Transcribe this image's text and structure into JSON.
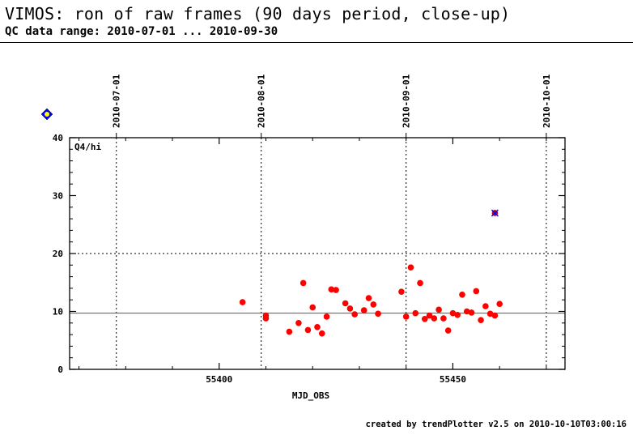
{
  "header": {
    "title": "VIMOS: ron of raw frames (90 days period, close-up)",
    "subtitle": "QC data range: 2010-07-01 ... 2010-09-30"
  },
  "footer": {
    "credit": "created by trendPlotter v2.5 on 2010-10-10T03:00:16"
  },
  "chart_data": {
    "type": "scatter",
    "panel_label": "Q4/hi",
    "xlabel": "MJD_OBS",
    "ylabel": "",
    "xlim": [
      55368,
      55474
    ],
    "ylim": [
      0,
      40
    ],
    "x_ticks": [
      55400,
      55450
    ],
    "y_ticks": [
      0,
      10,
      20,
      30,
      40
    ],
    "date_markers": [
      {
        "label": "2010-07-01",
        "x": 55378
      },
      {
        "label": "2010-08-01",
        "x": 55409
      },
      {
        "label": "2010-09-01",
        "x": 55440
      },
      {
        "label": "2010-10-01",
        "x": 55470
      }
    ],
    "reference_lines": [
      {
        "y": 9.7,
        "style": "solid"
      },
      {
        "y": 20,
        "style": "dotted"
      }
    ],
    "grid": false,
    "colors": {
      "points": "#ff0000",
      "outlier": "#cc0000",
      "outlier_marker": "#0000ff",
      "diamond": "#0000ff",
      "diamond_fill": "#ffff00"
    },
    "series": [
      {
        "x": [
          55405,
          55410,
          55410,
          55415,
          55417,
          55418,
          55419,
          55420,
          55421,
          55422,
          55423,
          55424,
          55425,
          55427,
          55428,
          55429,
          55431,
          55432,
          55433,
          55434,
          55439,
          55440,
          55441,
          55442,
          55443,
          55444,
          55445,
          55446,
          55447,
          55448,
          55449,
          55450,
          55451,
          55452,
          55453,
          55454,
          55455,
          55456,
          55457,
          55458,
          55459,
          55460
        ],
        "y": [
          11.6,
          9.3,
          8.8,
          6.5,
          8.0,
          14.9,
          6.8,
          10.7,
          7.3,
          6.2,
          9.1,
          13.8,
          13.7,
          11.4,
          10.5,
          9.5,
          10.2,
          12.3,
          11.2,
          9.6,
          13.4,
          9.1,
          17.6,
          9.7,
          14.9,
          8.7,
          9.3,
          8.8,
          10.3,
          8.8,
          6.7,
          9.7,
          9.4,
          12.9,
          10.0,
          9.8,
          13.5,
          8.5,
          10.9,
          9.6,
          9.3,
          11.3
        ]
      },
      {
        "name": "outlier",
        "x": [
          55459
        ],
        "y": [
          27.0
        ]
      }
    ]
  }
}
